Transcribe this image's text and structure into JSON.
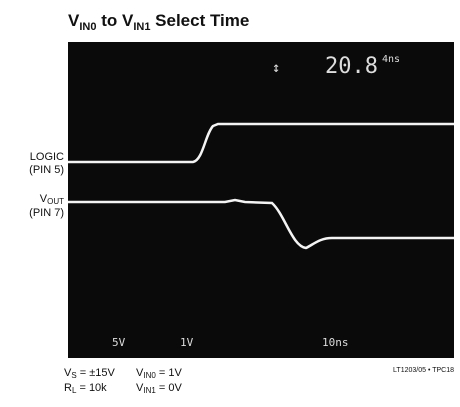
{
  "title": {
    "v1": "V",
    "sub1": "IN0",
    "mid": " to V",
    "sub2": "IN1",
    "rest": " Select Time"
  },
  "screen": {
    "readout_main": "20.8",
    "readout_small": "4ns",
    "marker": "↕",
    "scales": [
      "5V",
      "1V",
      "10ns"
    ]
  },
  "traces": [
    {
      "label_lines": [
        "LOGIC",
        "(PIN 5)"
      ]
    },
    {
      "label_main": "V",
      "label_sub": "OUT",
      "label_line2": "(PIN 7)"
    }
  ],
  "conditions": {
    "vs": {
      "main": "V",
      "sub": "S",
      "rest": " = ±15V"
    },
    "vin0": {
      "main": "V",
      "sub": "IN0",
      "rest": " = 1V"
    },
    "rl": {
      "main": "R",
      "sub": "L",
      "rest": " = 10k"
    },
    "vin1": {
      "main": "V",
      "sub": "IN1",
      "rest": " = 0V"
    }
  },
  "figure_id": "LT1203/05 • TPC18"
}
